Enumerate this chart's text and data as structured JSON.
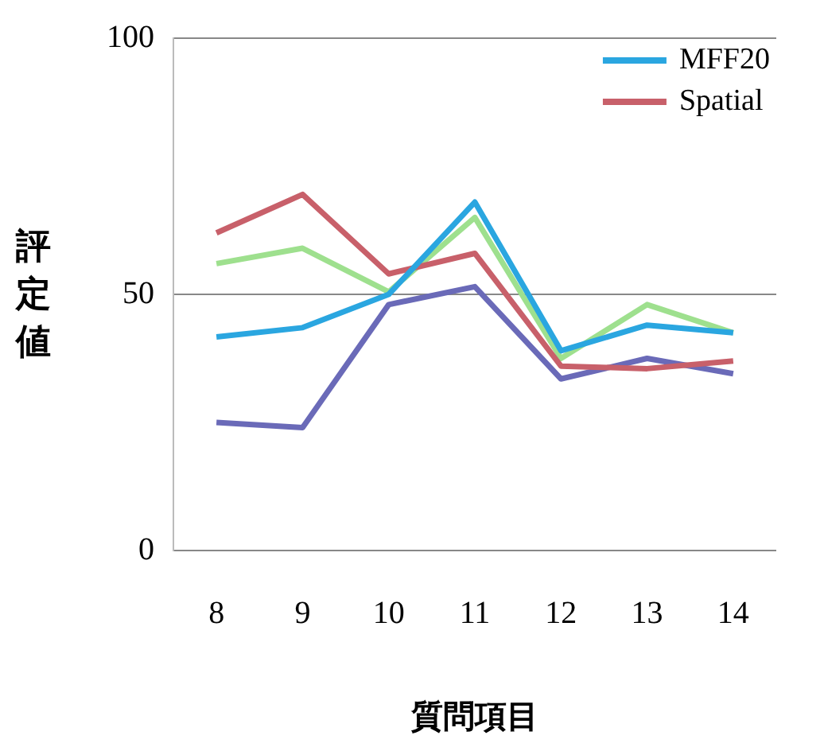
{
  "chart_data": {
    "type": "line",
    "ylabel": "評定値",
    "xlabel": "質問項目",
    "categories": [
      "8",
      "9",
      "10",
      "11",
      "12",
      "13",
      "14"
    ],
    "series": [
      {
        "name": "MFF20",
        "color": "#2aa6e0",
        "values": [
          41.7,
          43.5,
          50,
          68,
          39,
          44,
          42.5
        ]
      },
      {
        "name": "Spatial",
        "color": "#c8606a",
        "values": [
          62,
          69.5,
          54,
          58,
          36,
          35.5,
          37
        ]
      },
      {
        "color": "#9ee08e",
        "values": [
          56,
          59,
          50.5,
          65,
          37.5,
          48,
          42.5
        ]
      },
      {
        "color": "#6a6ab8",
        "values": [
          25,
          24,
          48,
          51.5,
          33.5,
          37.5,
          34.5
        ]
      }
    ],
    "ylim": [
      0,
      100
    ],
    "yticks": [
      0,
      50,
      100
    ],
    "grid": "y",
    "legend": "top right",
    "marker": "none",
    "line_style": "solid"
  }
}
